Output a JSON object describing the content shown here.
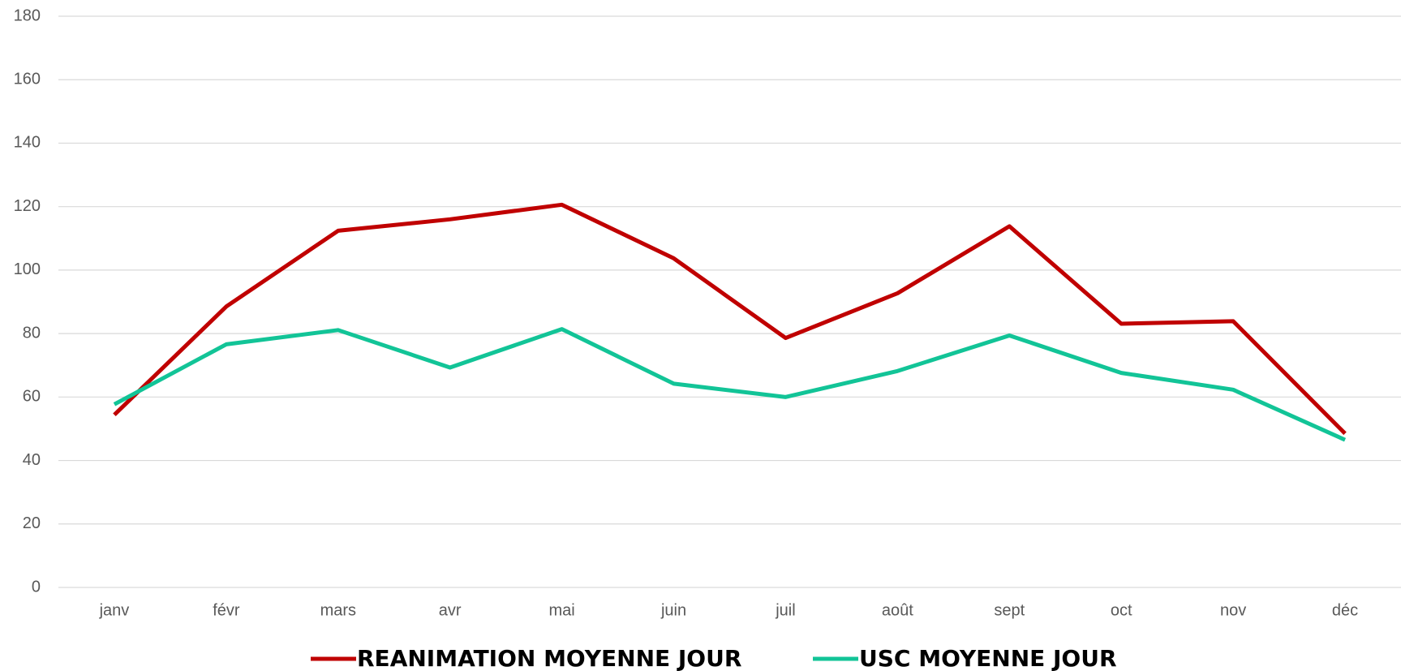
{
  "chart_data": {
    "type": "line",
    "categories": [
      "janv",
      "févr",
      "mars",
      "avr",
      "mai",
      "juin",
      "juil",
      "août",
      "sept",
      "oct",
      "nov",
      "déc"
    ],
    "series": [
      {
        "name": "REANIMATION MOYENNE JOUR",
        "color": "#c00000",
        "values": [
          54.4,
          88.5,
          112.4,
          116,
          120.6,
          103.7,
          78.6,
          92.7,
          113.8,
          83.1,
          83.9,
          48.5
        ]
      },
      {
        "name": "USC MOYENNE JOUR",
        "color": "#12c497",
        "values": [
          57.7,
          76.6,
          81.1,
          69.3,
          81.4,
          64.2,
          60,
          68.2,
          79.4,
          67.6,
          62.3,
          46.5
        ]
      }
    ],
    "ylim": [
      0,
      180
    ],
    "yticks": [
      0,
      20,
      40,
      60,
      80,
      100,
      120,
      140,
      160,
      180
    ],
    "grid": true,
    "legend": "bottom"
  }
}
